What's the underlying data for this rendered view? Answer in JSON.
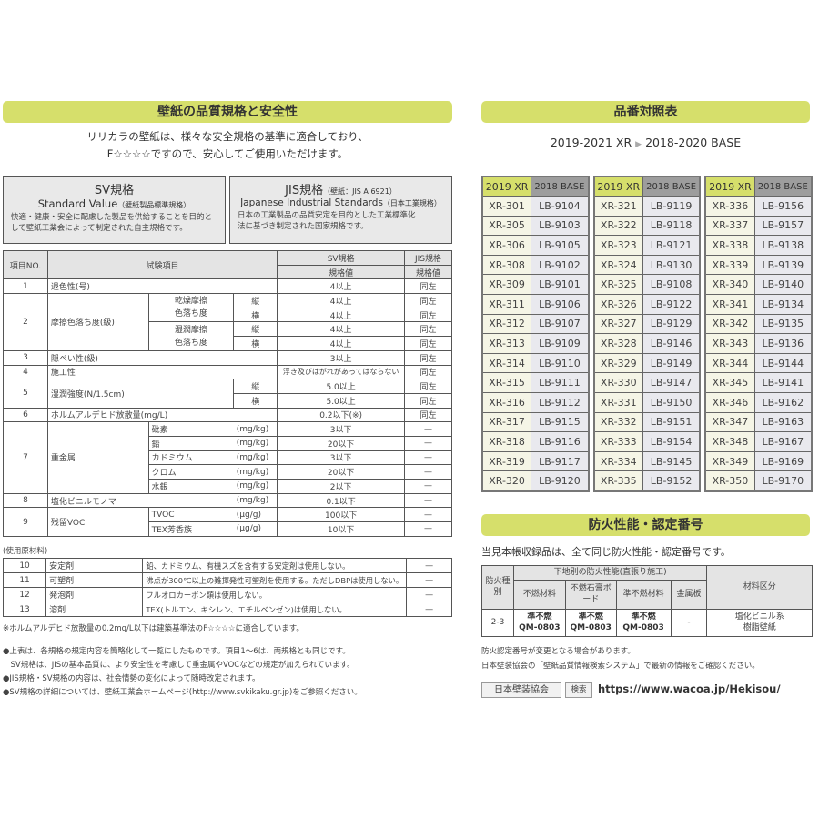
{
  "left": {
    "title": "壁紙の品質規格と安全性",
    "intro": [
      "リリカラの壁紙は、様々な安全規格の基準に適合しており、",
      "F☆☆☆☆ですので、安心してご使用いただけます。"
    ],
    "sv": {
      "title": "SV規格",
      "en": "Standard Value",
      "en_note": "（壁紙製品標準規格）",
      "desc": [
        "快適・健康・安全に配慮した製品を供給することを目的と",
        "して壁紙工業会によって制定された自主規格です。"
      ]
    },
    "jis": {
      "title": "JIS規格",
      "title_note": "（壁紙：JIS A 6921）",
      "en": "Japanese Industrial Standards",
      "en_note": "（日本工業規格）",
      "desc": [
        "日本の工業製品の品質安定を目的とした工業標準化",
        "法に基づき制定された国家規格です。"
      ]
    },
    "table": {
      "h_no": "項目NO.",
      "h_item": "試験項目",
      "h_sv": "SV規格",
      "h_jis": "JIS規格",
      "h_val": "規格値",
      "h_val2": "規格値",
      "r1": {
        "no": "1",
        "item": "退色性(号)",
        "sv": "4以上",
        "jis": "同左"
      },
      "r2": {
        "no": "2",
        "item": "摩擦色落ち度(級)",
        "dry": "乾燥摩擦\n色落ち度",
        "wet": "湿潤摩擦\n色落ち度",
        "tate": "縦",
        "yoko": "横",
        "v1": "4以上",
        "v2": "4以上",
        "v3": "4以上",
        "v4": "4以上",
        "j1": "同左",
        "j2": "同左",
        "j3": "同左",
        "j4": "同左"
      },
      "r3": {
        "no": "3",
        "item": "隠ぺい性(級)",
        "sv": "3以上",
        "jis": "同左"
      },
      "r4": {
        "no": "4",
        "item": "施工性",
        "sv": "浮き及びはがれがあってはならない",
        "jis": "同左"
      },
      "r5": {
        "no": "5",
        "item": "湿潤強度(N/1.5cm)",
        "tate": "縦",
        "yoko": "横",
        "v1": "5.0以上",
        "v2": "5.0以上",
        "j1": "同左",
        "j2": "同左"
      },
      "r6": {
        "no": "6",
        "item": "ホルムアルデヒド放散量(mg/L)",
        "sv": "0.2以下(※)",
        "jis": "同左"
      },
      "r7": {
        "no": "7",
        "item": "重金属",
        "subs": [
          {
            "name": "砒素",
            "unit": "(mg/kg)",
            "sv": "3以下",
            "jis": "—"
          },
          {
            "name": "鉛",
            "unit": "(mg/kg)",
            "sv": "20以下",
            "jis": "—"
          },
          {
            "name": "カドミウム",
            "unit": "(mg/kg)",
            "sv": "3以下",
            "jis": "—"
          },
          {
            "name": "クロム",
            "unit": "(mg/kg)",
            "sv": "20以下",
            "jis": "—"
          },
          {
            "name": "水銀",
            "unit": "(mg/kg)",
            "sv": "2以下",
            "jis": "—"
          }
        ]
      },
      "r8": {
        "no": "8",
        "item": "塩化ビニルモノマー",
        "unit": "(mg/kg)",
        "sv": "0.1以下",
        "jis": "—"
      },
      "r9": {
        "no": "9",
        "item": "残留VOC",
        "subs": [
          {
            "name": "TVOC",
            "unit": "(μg/g)",
            "sv": "100以下",
            "jis": "—"
          },
          {
            "name": "TEX芳香族",
            "unit": "(μg/g)",
            "sv": "10以下",
            "jis": "—"
          }
        ]
      }
    },
    "materials_label": "(使用原材料)",
    "materials": [
      {
        "no": "10",
        "item": "安定剤",
        "desc": "鉛、カドミウム、有機スズを含有する安定剤は使用しない。",
        "jis": "—"
      },
      {
        "no": "11",
        "item": "可塑剤",
        "desc": "沸点が300℃以上の難揮発性可塑剤を使用する。ただしDBPは使用しない。",
        "jis": "—"
      },
      {
        "no": "12",
        "item": "発泡剤",
        "desc": "フルオロカーボン類は使用しない。",
        "jis": "—"
      },
      {
        "no": "13",
        "item": "溶剤",
        "desc": "TEX(トルエン、キシレン、エチルベンゼン)は使用しない。",
        "jis": "—"
      }
    ],
    "footnote": "※ホルムアルデヒド放散量の0.2mg/L以下は建築基準法のF☆☆☆☆に適合しています。",
    "bullets": [
      "●上表は、各規格の規定内容を簡略化して一覧にしたものです。項目1～6は、両規格とも同じです。",
      "　SV規格は、JISの基本品質に、より安全性を考慮して重金属やVOCなどの規定が加えられています。",
      "●JIS規格・SV規格の内容は、社会情勢の変化によって随時改定されます。",
      "●SV規格の詳細については、壁紙工業会ホームページ(http://www.svkikaku.gr.jp)をご参照ください。"
    ]
  },
  "right": {
    "title": "品番対照表",
    "subtitle_a": "2019-2021 XR",
    "subtitle_b": "2018-2020 BASE",
    "col_xr": "2019 XR",
    "col_base": "2018 BASE",
    "groups": [
      [
        [
          "XR-301",
          "LB-9104"
        ],
        [
          "XR-305",
          "LB-9103"
        ],
        [
          "XR-306",
          "LB-9105"
        ],
        [
          "XR-308",
          "LB-9102"
        ],
        [
          "XR-309",
          "LB-9101"
        ],
        [
          "XR-311",
          "LB-9106"
        ],
        [
          "XR-312",
          "LB-9107"
        ],
        [
          "XR-313",
          "LB-9109"
        ],
        [
          "XR-314",
          "LB-9110"
        ],
        [
          "XR-315",
          "LB-9111"
        ],
        [
          "XR-316",
          "LB-9112"
        ],
        [
          "XR-317",
          "LB-9115"
        ],
        [
          "XR-318",
          "LB-9116"
        ],
        [
          "XR-319",
          "LB-9117"
        ],
        [
          "XR-320",
          "LB-9120"
        ]
      ],
      [
        [
          "XR-321",
          "LB-9119"
        ],
        [
          "XR-322",
          "LB-9118"
        ],
        [
          "XR-323",
          "LB-9121"
        ],
        [
          "XR-324",
          "LB-9130"
        ],
        [
          "XR-325",
          "LB-9108"
        ],
        [
          "XR-326",
          "LB-9122"
        ],
        [
          "XR-327",
          "LB-9129"
        ],
        [
          "XR-328",
          "LB-9146"
        ],
        [
          "XR-329",
          "LB-9149"
        ],
        [
          "XR-330",
          "LB-9147"
        ],
        [
          "XR-331",
          "LB-9150"
        ],
        [
          "XR-332",
          "LB-9151"
        ],
        [
          "XR-333",
          "LB-9154"
        ],
        [
          "XR-334",
          "LB-9145"
        ],
        [
          "XR-335",
          "LB-9152"
        ]
      ],
      [
        [
          "XR-336",
          "LB-9156"
        ],
        [
          "XR-337",
          "LB-9157"
        ],
        [
          "XR-338",
          "LB-9138"
        ],
        [
          "XR-339",
          "LB-9139"
        ],
        [
          "XR-340",
          "LB-9140"
        ],
        [
          "XR-341",
          "LB-9134"
        ],
        [
          "XR-342",
          "LB-9135"
        ],
        [
          "XR-343",
          "LB-9136"
        ],
        [
          "XR-344",
          "LB-9144"
        ],
        [
          "XR-345",
          "LB-9141"
        ],
        [
          "XR-346",
          "LB-9162"
        ],
        [
          "XR-347",
          "LB-9163"
        ],
        [
          "XR-348",
          "LB-9167"
        ],
        [
          "XR-349",
          "LB-9169"
        ],
        [
          "XR-350",
          "LB-9170"
        ]
      ]
    ],
    "fire": {
      "title": "防火性能・認定番号",
      "lead": "当見本帳収録品は、全て同じ防火性能・認定番号です。",
      "h_type": "防火種別",
      "h_group": "下地別の防火性能(直張り施工)",
      "h_c1": "不燃材料",
      "h_c2": "不燃石膏ボード",
      "h_c3": "準不燃材料",
      "h_c4": "金属板",
      "h_mat": "材料区分",
      "row": {
        "type": "2-3",
        "c1a": "準不燃",
        "c1b": "QM-0803",
        "c2a": "準不燃",
        "c2b": "QM-0803",
        "c3a": "準不燃",
        "c3b": "QM-0803",
        "c4": "-",
        "mat_a": "塩化ビニル系",
        "mat_b": "樹脂壁紙"
      },
      "notes": [
        "防火認定番号が変更となる場合があります。",
        "日本壁装協会の「壁紙品質情報検索システム」で最新の情報をご確認ください。"
      ]
    },
    "search": {
      "box": "日本壁装協会",
      "button": "検索",
      "url": "https://www.wacoa.jp/Hekisou/"
    }
  }
}
